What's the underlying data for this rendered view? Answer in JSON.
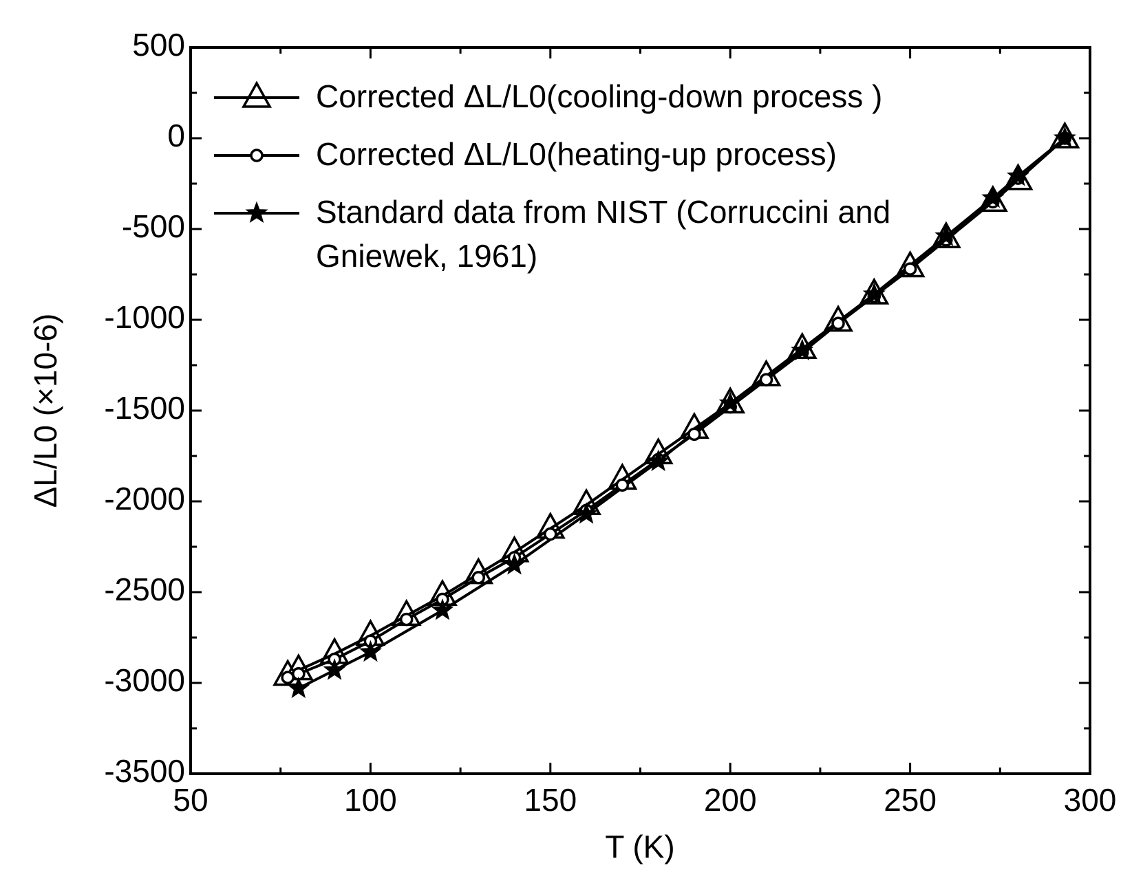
{
  "chart_data": {
    "type": "line",
    "x_label": "T (K)",
    "y_label": "ΔL/L0 (×10-6)",
    "xlim": [
      50,
      300
    ],
    "xticks": [
      50,
      100,
      150,
      200,
      250,
      300
    ],
    "ylim": [
      -3500,
      500
    ],
    "yticks": [
      500,
      0,
      -500,
      -1000,
      -1500,
      -2000,
      -2500,
      -3000,
      -3500
    ],
    "series": [
      {
        "name": "Corrected ΔL/L0(cooling-down process )",
        "color": "#000000",
        "marker": "triangle",
        "x": [
          77,
          80,
          90,
          100,
          110,
          120,
          130,
          140,
          150,
          160,
          170,
          180,
          190,
          200,
          210,
          220,
          230,
          240,
          250,
          260,
          273,
          280,
          293
        ],
        "values": [
          -2960,
          -2930,
          -2840,
          -2740,
          -2630,
          -2520,
          -2400,
          -2280,
          -2150,
          -2020,
          -1880,
          -1740,
          -1600,
          -1460,
          -1310,
          -1160,
          -1010,
          -860,
          -710,
          -550,
          -350,
          -230,
          0
        ]
      },
      {
        "name": "Corrected ΔL/L0(heating-up process)",
        "color": "#000000",
        "marker": "circle",
        "x": [
          77,
          80,
          90,
          100,
          110,
          120,
          130,
          140,
          150,
          160,
          170,
          180,
          190,
          200,
          210,
          220,
          230,
          240,
          250,
          260,
          273,
          280,
          293
        ],
        "values": [
          -2970,
          -2950,
          -2870,
          -2770,
          -2650,
          -2540,
          -2420,
          -2310,
          -2180,
          -2050,
          -1910,
          -1770,
          -1630,
          -1480,
          -1330,
          -1180,
          -1020,
          -870,
          -720,
          -560,
          -350,
          -220,
          0
        ]
      },
      {
        "name": "Standard data from NIST (Corruccini and Gniewek, 1961)",
        "color": "#000000",
        "marker": "star",
        "x": [
          80,
          90,
          100,
          120,
          140,
          160,
          180,
          200,
          220,
          240,
          260,
          273,
          280,
          293
        ],
        "values": [
          -3030,
          -2930,
          -2830,
          -2600,
          -2350,
          -2070,
          -1780,
          -1460,
          -1170,
          -860,
          -540,
          -330,
          -210,
          0
        ]
      }
    ]
  }
}
